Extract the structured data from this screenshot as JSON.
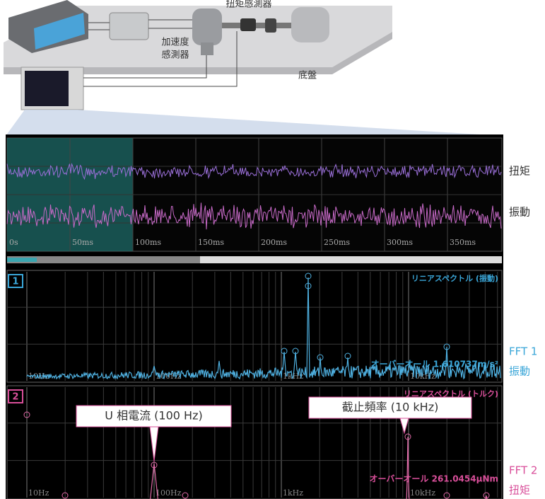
{
  "setup": {
    "torque_sensor": "扭矩感測器",
    "accel_sensor": [
      "加速度",
      "感測器"
    ],
    "chassis": "底盤"
  },
  "waveform": {
    "channels": [
      "扭矩",
      "振動"
    ],
    "time_labels": [
      "0s",
      "50ms",
      "100ms",
      "150ms",
      "200ms",
      "250ms",
      "300ms",
      "350ms"
    ]
  },
  "fft": [
    {
      "index": "1",
      "title": "リニアスペクトル (振動)",
      "overall": "オーバーオール 1.610737m/s²",
      "freq_labels": [
        "10Hz",
        "100Hz",
        "1kHz",
        "10kHz"
      ],
      "side_label": [
        "FFT 1",
        "振動"
      ]
    },
    {
      "index": "2",
      "title": "リニアスペクトル (トルク)",
      "overall": "オーバーオール 261.0454μNm",
      "freq_labels": [
        "10Hz",
        "100Hz",
        "1kHz",
        "10kHz"
      ],
      "side_label": [
        "FFT 2",
        "扭矩"
      ],
      "callouts": [
        "U 相電流 (100 Hz)",
        "截止頻率 (10 kHz)"
      ]
    }
  ]
}
